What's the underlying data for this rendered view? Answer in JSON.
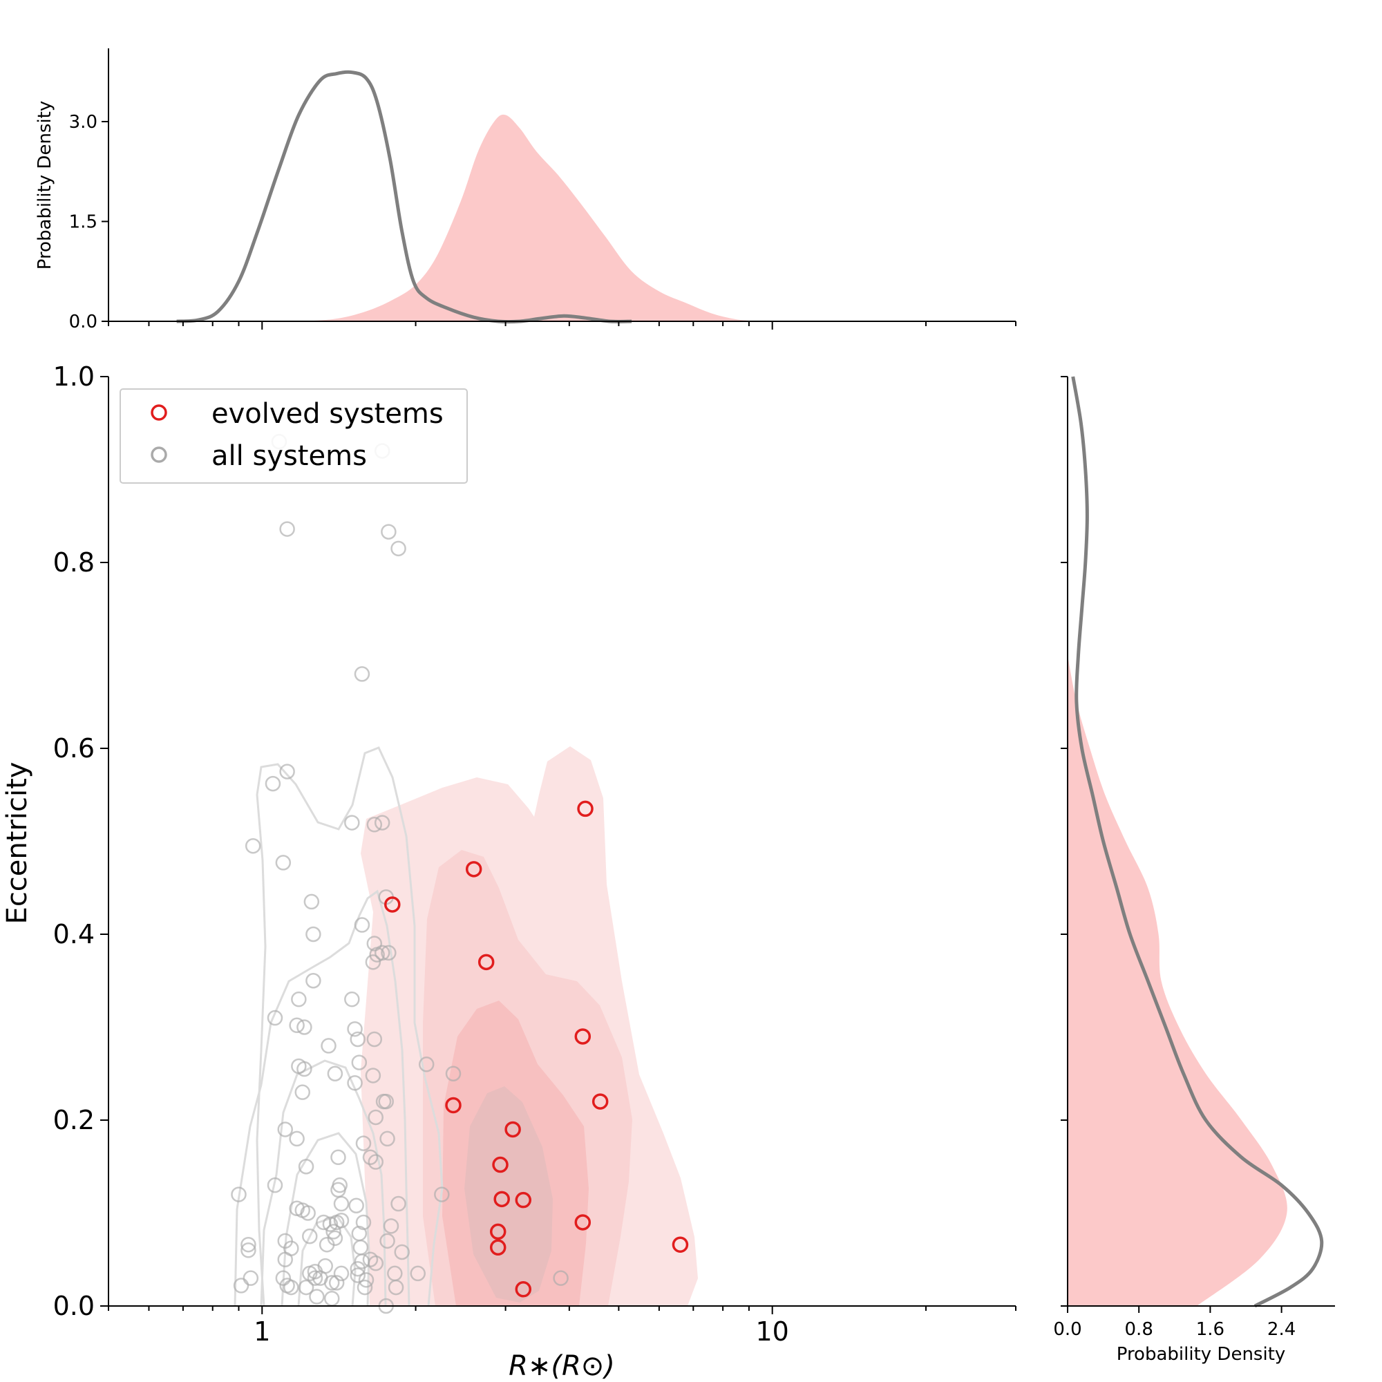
{
  "colors": {
    "evolved": "#e11d1d",
    "evolved_fill": "#fcc9c9",
    "all": "#aaaaaa",
    "all_line": "#7f7f7f",
    "contour_all": "#dcdcdc"
  },
  "chart_data": [
    {
      "id": "main-scatter",
      "type": "scatter",
      "xscale": "log",
      "xlim": [
        0.5,
        30
      ],
      "ylim": [
        0,
        1.0
      ],
      "xlabel": "R∗(R⊙)",
      "ylabel": "Eccentricity",
      "xticks": [
        1,
        10
      ],
      "xtick_labels": [
        "1",
        "10"
      ],
      "yticks": [
        0.0,
        0.2,
        0.4,
        0.6,
        0.8,
        1.0
      ],
      "ytick_labels": [
        "0.0",
        "0.2",
        "0.4",
        "0.6",
        "0.8",
        "1.0"
      ],
      "legend": {
        "position": "top-left",
        "entries": [
          {
            "label": "evolved systems",
            "color": "#e11d1d"
          },
          {
            "label": "all systems",
            "color": "#aaaaaa"
          }
        ]
      },
      "series": [
        {
          "name": "evolved systems",
          "points": [
            [
              4.3,
              0.535
            ],
            [
              2.6,
              0.47
            ],
            [
              1.8,
              0.432
            ],
            [
              2.75,
              0.37
            ],
            [
              4.25,
              0.29
            ],
            [
              4.6,
              0.22
            ],
            [
              2.37,
              0.216
            ],
            [
              3.1,
              0.19
            ],
            [
              2.93,
              0.152
            ],
            [
              2.95,
              0.115
            ],
            [
              3.25,
              0.114
            ],
            [
              4.25,
              0.09
            ],
            [
              2.9,
              0.08
            ],
            [
              2.9,
              0.063
            ],
            [
              6.6,
              0.066
            ],
            [
              3.25,
              0.018
            ]
          ]
        },
        {
          "name": "all systems",
          "points": [
            [
              1.08,
              0.93
            ],
            [
              1.72,
              0.92
            ],
            [
              1.12,
              0.836
            ],
            [
              1.77,
              0.833
            ],
            [
              1.85,
              0.815
            ],
            [
              1.57,
              0.68
            ],
            [
              1.12,
              0.575
            ],
            [
              1.05,
              0.562
            ],
            [
              0.96,
              0.495
            ],
            [
              1.1,
              0.477
            ],
            [
              1.5,
              0.52
            ],
            [
              1.66,
              0.518
            ],
            [
              1.72,
              0.52
            ],
            [
              1.25,
              0.435
            ],
            [
              1.75,
              0.44
            ],
            [
              1.26,
              0.4
            ],
            [
              1.57,
              0.41
            ],
            [
              1.66,
              0.39
            ],
            [
              1.68,
              0.378
            ],
            [
              1.72,
              0.38
            ],
            [
              1.77,
              0.38
            ],
            [
              1.65,
              0.37
            ],
            [
              1.26,
              0.35
            ],
            [
              1.5,
              0.33
            ],
            [
              1.18,
              0.33
            ],
            [
              1.06,
              0.31
            ],
            [
              1.17,
              0.302
            ],
            [
              1.21,
              0.3
            ],
            [
              1.52,
              0.298
            ],
            [
              1.54,
              0.287
            ],
            [
              1.66,
              0.287
            ],
            [
              1.35,
              0.28
            ],
            [
              1.55,
              0.262
            ],
            [
              1.18,
              0.258
            ],
            [
              1.21,
              0.255
            ],
            [
              1.39,
              0.25
            ],
            [
              1.65,
              0.248
            ],
            [
              1.52,
              0.24
            ],
            [
              1.2,
              0.23
            ],
            [
              1.75,
              0.22
            ],
            [
              1.73,
              0.22
            ],
            [
              1.67,
              0.203
            ],
            [
              1.11,
              0.19
            ],
            [
              1.17,
              0.18
            ],
            [
              1.58,
              0.175
            ],
            [
              1.76,
              0.18
            ],
            [
              1.63,
              0.16
            ],
            [
              1.67,
              0.155
            ],
            [
              1.41,
              0.16
            ],
            [
              1.22,
              0.15
            ],
            [
              1.42,
              0.13
            ],
            [
              1.06,
              0.13
            ],
            [
              0.9,
              0.12
            ],
            [
              1.41,
              0.125
            ],
            [
              1.43,
              0.11
            ],
            [
              1.53,
              0.108
            ],
            [
              1.85,
              0.11
            ],
            [
              1.17,
              0.105
            ],
            [
              1.2,
              0.103
            ],
            [
              1.23,
              0.1
            ],
            [
              1.32,
              0.09
            ],
            [
              1.36,
              0.088
            ],
            [
              1.4,
              0.09
            ],
            [
              1.43,
              0.092
            ],
            [
              1.58,
              0.09
            ],
            [
              1.38,
              0.08
            ],
            [
              1.79,
              0.086
            ],
            [
              1.55,
              0.078
            ],
            [
              1.24,
              0.075
            ],
            [
              1.39,
              0.073
            ],
            [
              1.76,
              0.07
            ],
            [
              1.11,
              0.07
            ],
            [
              1.34,
              0.066
            ],
            [
              1.56,
              0.063
            ],
            [
              0.94,
              0.066
            ],
            [
              1.14,
              0.062
            ],
            [
              0.94,
              0.06
            ],
            [
              1.88,
              0.058
            ],
            [
              1.11,
              0.05
            ],
            [
              1.63,
              0.05
            ],
            [
              1.57,
              0.048
            ],
            [
              1.67,
              0.046
            ],
            [
              1.33,
              0.043
            ],
            [
              1.54,
              0.04
            ],
            [
              1.27,
              0.037
            ],
            [
              1.24,
              0.035
            ],
            [
              1.43,
              0.035
            ],
            [
              1.3,
              0.03
            ],
            [
              1.82,
              0.035
            ],
            [
              2.02,
              0.035
            ],
            [
              1.27,
              0.03
            ],
            [
              1.54,
              0.033
            ],
            [
              1.1,
              0.03
            ],
            [
              0.95,
              0.03
            ],
            [
              1.6,
              0.028
            ],
            [
              1.4,
              0.025
            ],
            [
              1.37,
              0.025
            ],
            [
              1.12,
              0.022
            ],
            [
              1.14,
              0.02
            ],
            [
              1.59,
              0.02
            ],
            [
              0.91,
              0.022
            ],
            [
              1.83,
              0.02
            ],
            [
              1.22,
              0.02
            ],
            [
              1.28,
              0.01
            ],
            [
              1.37,
              0.008
            ],
            [
              1.75,
              0.0
            ],
            [
              3.85,
              0.03
            ],
            [
              2.1,
              0.26
            ],
            [
              2.37,
              0.25
            ],
            [
              2.25,
              0.12
            ]
          ]
        }
      ]
    },
    {
      "id": "top-marginal",
      "type": "area",
      "xscale": "log",
      "ylabel": "Probability Density",
      "ylim": [
        0,
        4.1
      ],
      "yticks": [
        0.0,
        1.5,
        3.0
      ],
      "ytick_labels": [
        "0.0",
        "1.5",
        "3.0"
      ],
      "series": [
        {
          "name": "all systems",
          "style": "line",
          "x": [
            0.68,
            0.75,
            0.82,
            0.9,
            0.98,
            1.08,
            1.18,
            1.3,
            1.4,
            1.5,
            1.6,
            1.68,
            1.78,
            1.88,
            1.98,
            2.1,
            2.3,
            2.6,
            2.9,
            3.2,
            3.5,
            3.9,
            4.3,
            4.8,
            5.3
          ],
          "y": [
            0.0,
            0.02,
            0.15,
            0.6,
            1.35,
            2.3,
            3.1,
            3.62,
            3.72,
            3.74,
            3.65,
            3.3,
            2.45,
            1.35,
            0.6,
            0.35,
            0.2,
            0.06,
            0.0,
            0.0,
            0.04,
            0.08,
            0.05,
            0.0,
            0.0
          ]
        },
        {
          "name": "evolved systems",
          "style": "fill",
          "x": [
            1.2,
            1.4,
            1.6,
            1.8,
            2.0,
            2.2,
            2.45,
            2.65,
            2.85,
            3.0,
            3.2,
            3.45,
            3.8,
            4.2,
            4.7,
            5.3,
            6.0,
            6.8,
            7.6,
            8.5,
            9.5
          ],
          "y": [
            0.0,
            0.04,
            0.15,
            0.32,
            0.55,
            0.98,
            1.8,
            2.55,
            3.0,
            3.1,
            2.9,
            2.55,
            2.2,
            1.78,
            1.28,
            0.75,
            0.45,
            0.27,
            0.12,
            0.03,
            0.0
          ]
        }
      ]
    },
    {
      "id": "right-marginal",
      "type": "area",
      "orientation": "horizontal",
      "xlabel": "Probability Density",
      "xlim": [
        0,
        3.0
      ],
      "xticks": [
        0.0,
        0.8,
        1.6,
        2.4
      ],
      "xtick_labels": [
        "0.0",
        "0.8",
        "1.6",
        "2.4"
      ],
      "series": [
        {
          "name": "all systems",
          "style": "line",
          "y": [
            0.0,
            0.02,
            0.04,
            0.07,
            0.1,
            0.13,
            0.16,
            0.2,
            0.25,
            0.3,
            0.35,
            0.4,
            0.45,
            0.5,
            0.55,
            0.6,
            0.65,
            0.7,
            0.75,
            0.8,
            0.85,
            0.9,
            0.95,
            1.0
          ],
          "x": [
            2.1,
            2.5,
            2.75,
            2.85,
            2.7,
            2.4,
            1.95,
            1.55,
            1.3,
            1.1,
            0.9,
            0.7,
            0.55,
            0.4,
            0.28,
            0.16,
            0.1,
            0.12,
            0.16,
            0.2,
            0.22,
            0.2,
            0.15,
            0.06
          ]
        },
        {
          "name": "evolved systems",
          "style": "fill",
          "y": [
            0.0,
            0.05,
            0.1,
            0.15,
            0.2,
            0.25,
            0.3,
            0.35,
            0.4,
            0.45,
            0.5,
            0.55,
            0.6,
            0.65,
            0.7
          ],
          "x": [
            1.45,
            2.15,
            2.46,
            2.3,
            1.95,
            1.55,
            1.25,
            1.05,
            1.02,
            0.9,
            0.65,
            0.42,
            0.25,
            0.1,
            0.0
          ]
        }
      ]
    }
  ]
}
